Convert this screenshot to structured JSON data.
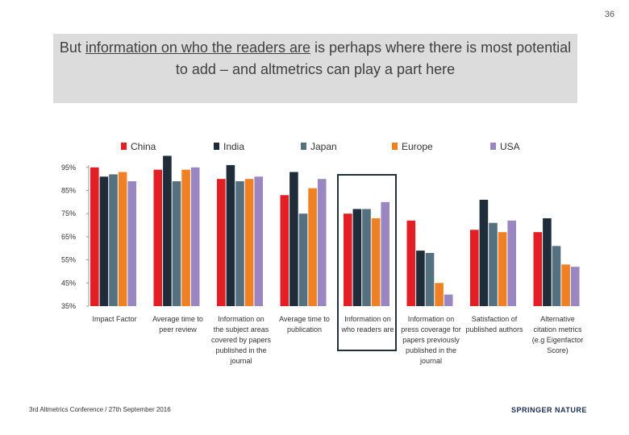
{
  "slide": {
    "number": "36",
    "title_part1": "But ",
    "title_underlined": "information on who the readers are",
    "title_part2": " is perhaps where there is most potential to add – and altmetrics can play a part here",
    "footer": "3rd Altmetrics Conference / 27th September 2016",
    "brand": "SPRINGER NATURE"
  },
  "chart_data": {
    "type": "bar",
    "title": "",
    "xlabel": "",
    "ylabel": "",
    "ylim": [
      35,
      100
    ],
    "y_ticks": [
      "95%",
      "85%",
      "75%",
      "65%",
      "55%",
      "45%",
      "35%"
    ],
    "y_tick_values": [
      95,
      85,
      75,
      65,
      55,
      45,
      35
    ],
    "legend_position": "top",
    "grid": false,
    "categories": [
      [
        "Impact Factor"
      ],
      [
        "Average time to",
        "peer review"
      ],
      [
        "Information on",
        "the subject areas",
        "covered by papers",
        "published in the",
        "journal"
      ],
      [
        "Average time to",
        "publication"
      ],
      [
        "Information on",
        "who readers are"
      ],
      [
        "Information on",
        "press coverage for",
        "papers previously",
        "published in the",
        "journal"
      ],
      [
        "Satisfaction of",
        "published authors"
      ],
      [
        "Alternative",
        "citation metrics",
        "(e.g Eigenfactor",
        "Score)"
      ]
    ],
    "highlighted_category_index": 4,
    "series": [
      {
        "name": "China",
        "color": "#e31e24",
        "values": [
          95,
          94,
          90,
          83,
          75,
          72,
          68,
          67
        ]
      },
      {
        "name": "India",
        "color": "#1f2d3a",
        "values": [
          91,
          100,
          96,
          93,
          77,
          59,
          81,
          73
        ]
      },
      {
        "name": "Japan",
        "color": "#55707f",
        "values": [
          92,
          89,
          89,
          75,
          77,
          58,
          71,
          61
        ]
      },
      {
        "name": "Europe",
        "color": "#f08024",
        "values": [
          93,
          94,
          90,
          86,
          73,
          45,
          67,
          53
        ]
      },
      {
        "name": "USA",
        "color": "#9a86c1",
        "values": [
          89,
          95,
          91,
          90,
          80,
          40,
          72,
          52
        ]
      }
    ]
  }
}
